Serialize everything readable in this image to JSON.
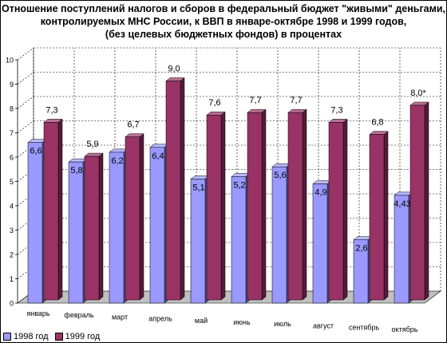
{
  "chart_data": {
    "type": "bar",
    "title_lines": [
      "Отношение поступлений  налогов и сборов в федеральный бюджет \"живыми\" деньгами,",
      "контролируемых МНС России, к ВВП в  январе-октябре 1998 и 1999 годов,",
      "(без целевых бюджетных фондов) в процентах"
    ],
    "categories": [
      "январь",
      "февраль",
      "март",
      "апрель",
      "май",
      "июнь",
      "июль",
      "август",
      "сентябрь",
      "октябрь"
    ],
    "series": [
      {
        "name": "1998 год",
        "values": [
          6.6,
          5.8,
          6.2,
          6.4,
          5.1,
          5.2,
          5.6,
          4.9,
          2.6,
          4.43
        ],
        "labels": [
          "6,6",
          "5,8",
          "6,2",
          "6,4",
          "5,1",
          "5,2",
          "5,6",
          "4,9",
          "2,6",
          "4,43"
        ],
        "color": "#9999ff"
      },
      {
        "name": "1999 год",
        "values": [
          7.3,
          5.9,
          6.7,
          9.0,
          7.6,
          7.7,
          7.7,
          7.3,
          6.8,
          8.0
        ],
        "labels": [
          "7,3",
          "5,9",
          "6,7",
          "9,0",
          "7,6",
          "7,7",
          "7,7",
          "7,3",
          "6,8",
          "8,0*"
        ],
        "color": "#993366"
      }
    ],
    "ylim": [
      0,
      10
    ],
    "yticks": [
      "0",
      "1",
      "2",
      "3",
      "4",
      "5",
      "6",
      "7",
      "8",
      "9",
      "10"
    ],
    "grid": true,
    "legend_position": "bottom-left"
  }
}
